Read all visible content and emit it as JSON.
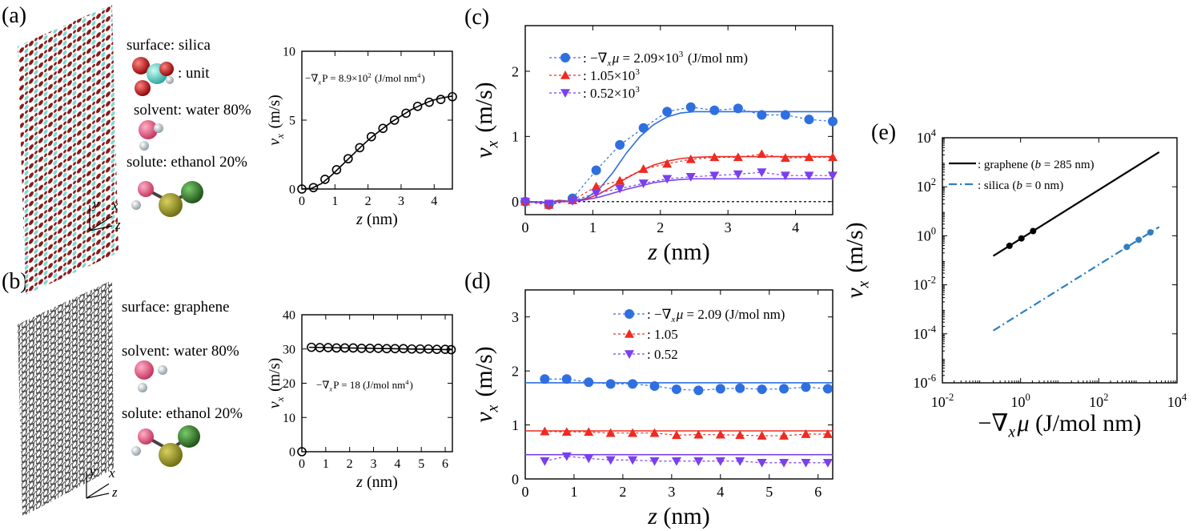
{
  "panel_labels": {
    "a": "(a)",
    "b": "(b)",
    "c": "(c)",
    "d": "(d)",
    "e": "(e)"
  },
  "panel_a": {
    "surface": "surface: silica",
    "unit": ": unit",
    "solvent": "solvent: water 80%",
    "solute": "solute: ethanol 20%",
    "axes": {
      "x": "x",
      "y": "y",
      "z": "z"
    }
  },
  "panel_b": {
    "surface": "surface: graphene",
    "solvent": "solvent: water 80%",
    "solute": "solute: ethanol 20%",
    "axes": {
      "x": "x",
      "y": "y",
      "z": "z"
    }
  },
  "colors": {
    "black": "#000000",
    "blue": "#2f6fe0",
    "red": "#ee2a22",
    "purple": "#7a3ff0",
    "steel": "#2f7fc0",
    "silica_red": "#8b1a1a",
    "silica_cyan": "#7fd8d0",
    "graphene": "#444444"
  },
  "chart_data": [
    {
      "id": "a",
      "type": "line",
      "title": "",
      "xlabel": "z (nm)",
      "ylabel": "v_x (m/s)",
      "annotation": "−∇xP = 8.9×10^2 (J/mol nm^4)",
      "xlim": [
        0,
        4.55
      ],
      "ylim": [
        0,
        10
      ],
      "xticks": [
        0,
        1,
        2,
        3,
        4
      ],
      "yticks": [
        0,
        5,
        10
      ],
      "series": [
        {
          "name": "simulation",
          "marker": "open-circle",
          "x": [
            0.0,
            0.35,
            0.7,
            1.05,
            1.4,
            1.75,
            2.1,
            2.45,
            2.8,
            3.15,
            3.5,
            3.85,
            4.2,
            4.55
          ],
          "y": [
            0.0,
            0.1,
            0.7,
            1.4,
            2.2,
            3.0,
            3.8,
            4.4,
            5.0,
            5.5,
            6.0,
            6.3,
            6.5,
            6.7
          ]
        },
        {
          "name": "fit",
          "marker": "line",
          "x": [
            0,
            0.3,
            0.6,
            0.9,
            1.2,
            1.5,
            1.8,
            2.1,
            2.4,
            2.7,
            3.0,
            3.3,
            3.6,
            3.9,
            4.2,
            4.55
          ],
          "y": [
            0,
            0.05,
            0.4,
            1.0,
            1.7,
            2.4,
            3.1,
            3.75,
            4.3,
            4.85,
            5.3,
            5.75,
            6.1,
            6.4,
            6.6,
            6.75
          ]
        }
      ]
    },
    {
      "id": "b",
      "type": "line",
      "title": "",
      "xlabel": "z (nm)",
      "ylabel": "v_x (m/s)",
      "annotation": "−∇xP = 18 (J/mol nm^4)",
      "xlim": [
        0,
        6.3
      ],
      "ylim": [
        0,
        40
      ],
      "xticks": [
        0,
        1,
        2,
        3,
        4,
        5,
        6
      ],
      "yticks": [
        0,
        10,
        20,
        30,
        40
      ],
      "series": [
        {
          "name": "simulation",
          "marker": "open-circle",
          "x": [
            0.0,
            0.4,
            0.75,
            1.1,
            1.45,
            1.8,
            2.15,
            2.5,
            2.85,
            3.2,
            3.55,
            3.9,
            4.25,
            4.6,
            4.95,
            5.3,
            5.65,
            6.0,
            6.25
          ],
          "y": [
            0.0,
            30.5,
            30.4,
            30.4,
            30.3,
            30.3,
            30.3,
            30.2,
            30.2,
            30.2,
            30.1,
            30.1,
            30.1,
            30.0,
            30.0,
            30.0,
            29.9,
            29.9,
            29.8
          ]
        },
        {
          "name": "fit",
          "marker": "line",
          "x": [
            0.3,
            6.3
          ],
          "y": [
            30.5,
            29.8
          ]
        }
      ]
    },
    {
      "id": "c",
      "type": "line",
      "title": "",
      "xlabel": "z (nm)",
      "ylabel": "v_x (m/s)",
      "xlim": [
        0,
        4.55
      ],
      "ylim": [
        -0.2,
        2.7
      ],
      "xticks": [
        0,
        1,
        2,
        3,
        4
      ],
      "yticks": [
        0,
        1,
        2
      ],
      "legend_position": "top-left",
      "legend": [
        {
          "label": ": −∇xμ = 2.09×10^3 (J/mol nm)",
          "color": "#2f6fe0",
          "marker": "circle"
        },
        {
          "label": ": 1.05×10^3",
          "color": "#ee2a22",
          "marker": "triangle-up"
        },
        {
          "label": ": 0.52×10^3",
          "color": "#7a3ff0",
          "marker": "triangle-down"
        }
      ],
      "series": [
        {
          "name": "2.09×10^3",
          "color": "#2f6fe0",
          "marker": "circle",
          "x": [
            0.0,
            0.35,
            0.7,
            1.05,
            1.4,
            1.75,
            2.1,
            2.45,
            2.8,
            3.15,
            3.5,
            3.85,
            4.2,
            4.55
          ],
          "y": [
            0.0,
            -0.05,
            0.05,
            0.48,
            0.87,
            1.13,
            1.38,
            1.45,
            1.4,
            1.43,
            1.33,
            1.33,
            1.26,
            1.23
          ],
          "fit_x": [
            0,
            0.3,
            0.5,
            0.7,
            0.9,
            1.1,
            1.3,
            1.5,
            1.7,
            1.9,
            2.1,
            2.3,
            2.5,
            2.8,
            3.2,
            3.6,
            4.0,
            4.55
          ],
          "fit_y": [
            0,
            -0.02,
            0.02,
            0.0,
            0.05,
            0.2,
            0.45,
            0.75,
            1.0,
            1.18,
            1.3,
            1.36,
            1.38,
            1.38,
            1.38,
            1.38,
            1.38,
            1.38
          ]
        },
        {
          "name": "1.05×10^3",
          "color": "#ee2a22",
          "marker": "triangle-up",
          "x": [
            0.0,
            0.35,
            0.7,
            1.05,
            1.4,
            1.75,
            2.1,
            2.45,
            2.8,
            3.15,
            3.5,
            3.85,
            4.2,
            4.55
          ],
          "y": [
            0.0,
            -0.05,
            0.02,
            0.23,
            0.32,
            0.5,
            0.58,
            0.65,
            0.68,
            0.68,
            0.73,
            0.67,
            0.68,
            0.68
          ],
          "fit_x": [
            0,
            0.3,
            0.5,
            0.7,
            0.9,
            1.1,
            1.3,
            1.5,
            1.7,
            1.9,
            2.1,
            2.3,
            2.5,
            2.8,
            3.2,
            3.6,
            4.0,
            4.55
          ],
          "fit_y": [
            0,
            -0.01,
            0.01,
            0.0,
            0.04,
            0.12,
            0.24,
            0.36,
            0.47,
            0.56,
            0.62,
            0.66,
            0.68,
            0.69,
            0.69,
            0.69,
            0.69,
            0.69
          ]
        },
        {
          "name": "0.52×10^3",
          "color": "#7a3ff0",
          "marker": "triangle-down",
          "x": [
            0.0,
            0.35,
            0.7,
            1.05,
            1.4,
            1.75,
            2.1,
            2.45,
            2.8,
            3.15,
            3.5,
            3.85,
            4.2,
            4.55
          ],
          "y": [
            0.0,
            -0.03,
            0.01,
            0.13,
            0.2,
            0.28,
            0.35,
            0.38,
            0.4,
            0.42,
            0.45,
            0.4,
            0.4,
            0.4
          ],
          "fit_x": [
            0,
            0.3,
            0.5,
            0.7,
            0.9,
            1.1,
            1.3,
            1.5,
            1.7,
            1.9,
            2.1,
            2.3,
            2.5,
            2.8,
            3.2,
            3.6,
            4.0,
            4.55
          ],
          "fit_y": [
            0,
            -0.01,
            0.0,
            0.0,
            0.03,
            0.07,
            0.13,
            0.19,
            0.24,
            0.29,
            0.32,
            0.34,
            0.35,
            0.35,
            0.35,
            0.35,
            0.35,
            0.35
          ]
        }
      ]
    },
    {
      "id": "d",
      "type": "line",
      "title": "",
      "xlabel": "z (nm)",
      "ylabel": "v_x (m/s)",
      "xlim": [
        0,
        6.3
      ],
      "ylim": [
        0,
        3.5
      ],
      "xticks": [
        0,
        1,
        2,
        3,
        4,
        5,
        6
      ],
      "yticks": [
        0,
        1,
        2,
        3
      ],
      "legend_position": "top-right",
      "legend": [
        {
          "label": ": −∇xμ = 2.09 (J/mol nm)",
          "color": "#2f6fe0",
          "marker": "circle"
        },
        {
          "label": ": 1.05",
          "color": "#ee2a22",
          "marker": "triangle-up"
        },
        {
          "label": ": 0.52",
          "color": "#7a3ff0",
          "marker": "triangle-down"
        }
      ],
      "series": [
        {
          "name": "2.09",
          "color": "#2f6fe0",
          "marker": "circle",
          "x": [
            0.4,
            0.85,
            1.3,
            1.75,
            2.2,
            2.65,
            3.1,
            3.55,
            4.0,
            4.4,
            4.85,
            5.3,
            5.75,
            6.2
          ],
          "y": [
            1.85,
            1.85,
            1.79,
            1.76,
            1.76,
            1.72,
            1.66,
            1.64,
            1.67,
            1.68,
            1.66,
            1.67,
            1.7,
            1.67
          ],
          "fit_x": [
            0.0,
            6.3
          ],
          "fit_y": [
            1.78,
            1.78
          ]
        },
        {
          "name": "1.05",
          "color": "#ee2a22",
          "marker": "triangle-up",
          "x": [
            0.4,
            0.85,
            1.3,
            1.75,
            2.2,
            2.65,
            3.1,
            3.55,
            4.0,
            4.4,
            4.85,
            5.3,
            5.75,
            6.2
          ],
          "y": [
            0.88,
            0.87,
            0.87,
            0.85,
            0.85,
            0.85,
            0.81,
            0.82,
            0.82,
            0.81,
            0.8,
            0.8,
            0.83,
            0.83
          ],
          "fit_x": [
            0.0,
            6.3
          ],
          "fit_y": [
            0.89,
            0.89
          ]
        },
        {
          "name": "0.52",
          "color": "#7a3ff0",
          "marker": "triangle-down",
          "x": [
            0.4,
            0.85,
            1.3,
            1.75,
            2.2,
            2.65,
            3.1,
            3.55,
            4.0,
            4.4,
            4.85,
            5.3,
            5.75,
            6.2
          ],
          "y": [
            0.33,
            0.42,
            0.38,
            0.35,
            0.35,
            0.33,
            0.33,
            0.33,
            0.33,
            0.33,
            0.3,
            0.3,
            0.3,
            0.3
          ],
          "fit_x": [
            0.0,
            6.3
          ],
          "fit_y": [
            0.45,
            0.45
          ]
        }
      ]
    },
    {
      "id": "e",
      "type": "line",
      "scale": "log-log",
      "title": "",
      "xlabel": "−∇xμ (J/mol nm)",
      "ylabel": "v_x (m/s)",
      "xlim_log10": [
        -2,
        4
      ],
      "ylim_log10": [
        -6,
        4
      ],
      "xticks_log10": [
        -2,
        0,
        2,
        4
      ],
      "yticks_log10": [
        -6,
        -4,
        -2,
        0,
        2,
        4
      ],
      "legend_position": "top-left",
      "legend": [
        {
          "label": ": graphene (b = 285 nm)",
          "color": "#000000",
          "style": "solid"
        },
        {
          "label": ": silica (b = 0 nm)",
          "color": "#2f7fc0",
          "style": "dash-dot"
        }
      ],
      "series": [
        {
          "name": "graphene",
          "color": "#000000",
          "style": "solid",
          "points_x": [
            0.52,
            1.05,
            2.09
          ],
          "points_y": [
            0.39,
            0.78,
            1.56
          ],
          "line_x": [
            0.2,
            3500
          ],
          "line_y": [
            0.15,
            2600
          ]
        },
        {
          "name": "silica",
          "color": "#2f7fc0",
          "style": "dash-dot",
          "points_x": [
            520,
            1050,
            2090
          ],
          "points_y": [
            0.35,
            0.69,
            1.38
          ],
          "line_x": [
            0.2,
            3500
          ],
          "line_y": [
            0.000135,
            2.3
          ]
        }
      ]
    }
  ]
}
